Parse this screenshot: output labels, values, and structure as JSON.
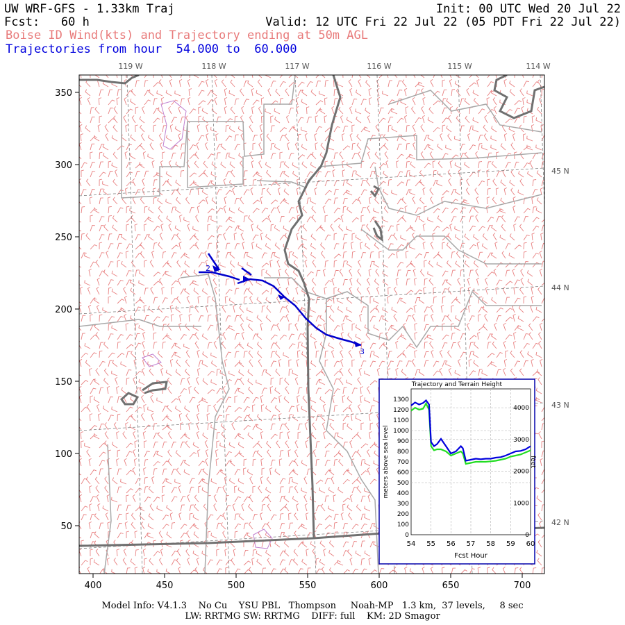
{
  "header": {
    "title": "UW WRF-GFS - 1.33km Traj",
    "init": "Init: 00 UTC Wed 20 Jul 22",
    "fcst": "Fcst:   60 h",
    "valid": "Valid: 12 UTC Fri 22 Jul 22 (05 PDT Fri 22 Jul 22)",
    "subtitle": "Boise ID Wind(kts) and Trajectory ending at 50m AGL",
    "trajectory_range": "Trajectories from hour  54.000 to  60.000"
  },
  "map": {
    "x_ticks": [
      "400",
      "450",
      "500",
      "550",
      "600",
      "650",
      "700"
    ],
    "y_ticks": [
      "50",
      "100",
      "150",
      "200",
      "250",
      "300",
      "350"
    ],
    "lon_labels": [
      "119 W",
      "118 W",
      "117 W",
      "116 W",
      "115 W",
      "114 W"
    ],
    "lat_labels": [
      "45 N",
      "44 N",
      "43 N",
      "42 N"
    ],
    "trajectory_marker_start": "2",
    "trajectory_marker_end": "3",
    "colors": {
      "wind_barbs": "#e88080",
      "trajectory": "#0000cc",
      "borders": "#707070",
      "counties": "#a8a8a8",
      "terrain_contour": "#b070c0"
    }
  },
  "inset": {
    "title": "Trajectory and Terrain Height",
    "ylabel_left": "meters above sea level",
    "ylabel_right": "feet",
    "xlabel": "Fcst Hour",
    "x_ticks": [
      "54",
      "55",
      "56",
      "57",
      "58",
      "59",
      "60"
    ],
    "y_ticks_m": [
      "0",
      "100",
      "200",
      "300",
      "400",
      "500",
      "600",
      "700",
      "800",
      "900",
      "1000",
      "1100",
      "1200",
      "1300"
    ],
    "y_ticks_ft": [
      "0",
      "1000",
      "2000",
      "3000",
      "4000"
    ]
  },
  "chart_data": {
    "type": "line",
    "title": "Trajectory and Terrain Height",
    "xlabel": "Fcst Hour",
    "ylabel": "meters above sea level",
    "xlim": [
      54,
      60
    ],
    "ylim": [
      0,
      1400
    ],
    "grid": true,
    "x": [
      54.0,
      54.2,
      54.4,
      54.6,
      54.75,
      54.9,
      55.0,
      55.15,
      55.3,
      55.5,
      55.75,
      56.0,
      56.25,
      56.5,
      56.6,
      56.75,
      57.0,
      57.25,
      57.5,
      57.75,
      58.0,
      58.25,
      58.5,
      58.75,
      59.0,
      59.25,
      59.5,
      59.75,
      60.0
    ],
    "series": [
      {
        "color": "#0000dd",
        "values": [
          1240,
          1270,
          1250,
          1265,
          1290,
          1250,
          890,
          850,
          870,
          920,
          850,
          780,
          800,
          850,
          830,
          710,
          720,
          730,
          725,
          730,
          730,
          740,
          745,
          760,
          780,
          800,
          805,
          820,
          850
        ]
      },
      {
        "color": "#22dd22",
        "values": [
          1190,
          1220,
          1200,
          1210,
          1260,
          1200,
          850,
          810,
          820,
          820,
          800,
          760,
          780,
          800,
          780,
          680,
          690,
          700,
          700,
          700,
          705,
          710,
          720,
          730,
          750,
          760,
          770,
          790,
          810
        ]
      }
    ]
  },
  "footer": {
    "line1": "Model Info: V4.1.3    No Cu    YSU PBL   Thompson     Noah-MP   1.3 km,  37 levels,     8 sec",
    "line2": "LW: RRTMG SW: RRTMG    DIFF: full    KM: 2D Smagor"
  }
}
